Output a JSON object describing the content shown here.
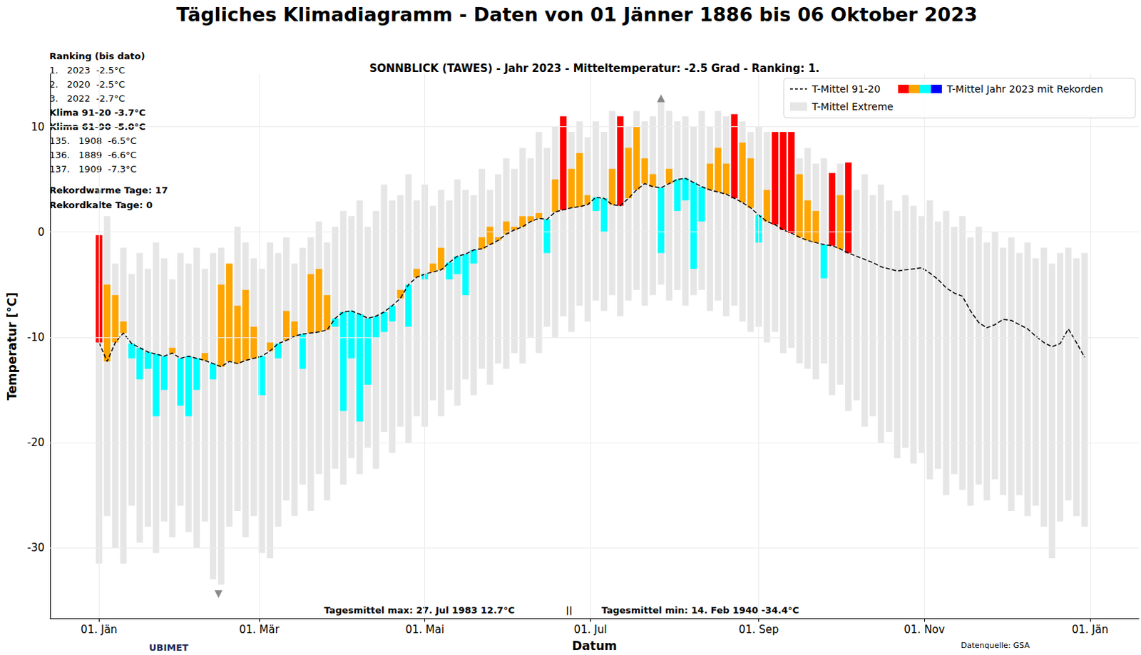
{
  "chart_data": {
    "type": "bar",
    "title": "Tägliches Klimadiagramm - Daten von 01 Jänner 1886 bis 06 Oktober 2023",
    "subtitle": "SONNBLICK (TAWES) - Jahr 2023 - Mitteltemperatur: -2.5 Grad - Ranking: 1.",
    "x_label": "Datum",
    "y_label": "Temperatur [°C]",
    "grid": true,
    "legend": "upper right",
    "xlim": [
      -18,
      383
    ],
    "xticks": [
      {
        "value": 0,
        "label": "01. Jän"
      },
      {
        "value": 59,
        "label": "01. Mär"
      },
      {
        "value": 120,
        "label": "01. Mai"
      },
      {
        "value": 181,
        "label": "01. Jul"
      },
      {
        "value": 243,
        "label": "01. Sep"
      },
      {
        "value": 304,
        "label": "01. Nov"
      },
      {
        "value": 365,
        "label": "01. Jän"
      }
    ],
    "ylim": [
      -36.7,
      15
    ],
    "yticks": [
      -30,
      -20,
      -10,
      0,
      10
    ],
    "x": [
      0,
      3,
      6,
      9,
      12,
      15,
      18,
      21,
      24,
      27,
      30,
      33,
      36,
      39,
      42,
      45,
      48,
      51,
      54,
      57,
      60,
      63,
      66,
      69,
      72,
      75,
      78,
      81,
      84,
      87,
      90,
      93,
      96,
      99,
      102,
      105,
      108,
      111,
      114,
      117,
      120,
      123,
      126,
      129,
      132,
      135,
      138,
      141,
      144,
      147,
      150,
      153,
      156,
      159,
      162,
      165,
      168,
      171,
      174,
      177,
      180,
      183,
      186,
      189,
      192,
      195,
      198,
      201,
      204,
      207,
      210,
      213,
      216,
      219,
      222,
      225,
      228,
      231,
      234,
      237,
      240,
      243,
      246,
      249,
      252,
      255,
      258,
      261,
      264,
      267,
      270,
      273,
      276,
      279,
      282,
      285,
      288,
      291,
      294,
      297,
      300,
      303,
      306,
      309,
      312,
      315,
      318,
      321,
      324,
      327,
      330,
      333,
      336,
      339,
      342,
      345,
      348,
      351,
      354,
      357,
      360,
      363
    ],
    "series": [
      {
        "name": "T-Mittel 91-20",
        "type": "line",
        "color": "#000000",
        "line_style": "dashed",
        "values": [
          -10.5,
          -12.3,
          -10.5,
          -9.6,
          -10.6,
          -11.0,
          -11.4,
          -11.6,
          -11.8,
          -11.5,
          -12.0,
          -11.8,
          -12.0,
          -12.2,
          -12.5,
          -12.8,
          -12.3,
          -12.5,
          -12.2,
          -12.0,
          -11.8,
          -11.3,
          -10.6,
          -10.3,
          -9.9,
          -9.7,
          -9.6,
          -9.5,
          -9.3,
          -8.2,
          -7.6,
          -7.5,
          -7.8,
          -8.2,
          -8.0,
          -7.6,
          -7.0,
          -6.3,
          -5.0,
          -4.3,
          -4.0,
          -3.8,
          -3.6,
          -2.9,
          -2.3,
          -2.1,
          -1.7,
          -1.6,
          -1.2,
          -0.8,
          -0.2,
          0.2,
          0.5,
          1.0,
          1.3,
          1.2,
          1.9,
          2.1,
          2.3,
          2.4,
          2.6,
          3.3,
          3.2,
          2.6,
          2.5,
          3.2,
          4.0,
          4.6,
          4.3,
          4.2,
          4.6,
          5.0,
          5.1,
          4.7,
          4.3,
          4.0,
          3.8,
          3.6,
          3.2,
          2.8,
          2.3,
          1.6,
          1.0,
          0.7,
          0.2,
          -0.1,
          -0.5,
          -0.8,
          -1.0,
          -1.2,
          -1.3,
          -1.6,
          -2.0,
          -2.3,
          -2.6,
          -2.9,
          -3.3,
          -3.5,
          -3.7,
          -3.6,
          -3.5,
          -3.4,
          -3.9,
          -4.5,
          -5.3,
          -5.8,
          -6.1,
          -7.5,
          -8.6,
          -9.1,
          -8.8,
          -8.3,
          -8.4,
          -8.8,
          -9.2,
          -9.9,
          -10.5,
          -10.9,
          -10.6,
          -9.2,
          -10.5,
          -11.9
        ]
      },
      {
        "name": "T-Mittel Jahr 2023 mit Rekorden",
        "type": "bar",
        "color": [
          "#ff0000",
          "#ffa500",
          "#00ffff",
          "#0000ff"
        ],
        "values": [
          -0.3,
          -5.0,
          -6.0,
          -8.5,
          -12.0,
          -14.0,
          -13.0,
          -17.5,
          -15.0,
          -11.0,
          -16.5,
          -17.5,
          -15.0,
          -11.5,
          -14.0,
          -5.0,
          -3.0,
          -7.0,
          -5.5,
          -9.0,
          -15.5,
          -10.5,
          -12.0,
          -7.5,
          -8.5,
          -13.0,
          -4.0,
          -3.5,
          -6.0,
          -9.0,
          -17.0,
          -12.0,
          -18.0,
          -14.5,
          -10.0,
          -9.5,
          -8.5,
          -5.5,
          -9.0,
          -3.5,
          -4.5,
          -3.0,
          -1.5,
          -4.5,
          -4.0,
          -6.0,
          -3.0,
          -0.5,
          0.5,
          -0.5,
          1.0,
          0.5,
          1.5,
          1.5,
          1.8,
          -2.0,
          5.0,
          11.0,
          6.0,
          7.5,
          3.5,
          2.0,
          0.0,
          6.0,
          11.0,
          8.0,
          10.0,
          7.0,
          5.5,
          -2.0,
          6.0,
          2.0,
          3.0,
          -3.5,
          1.0,
          6.5,
          8.0,
          6.5,
          11.2,
          8.5,
          7.0,
          -1.0,
          4.0,
          9.5,
          9.5,
          9.5,
          5.5,
          3.0,
          2.0,
          -4.4,
          5.6,
          3.5,
          6.6,
          null,
          null,
          null,
          null,
          null,
          null,
          null,
          null,
          null,
          null,
          null,
          null,
          null,
          null,
          null,
          null,
          null,
          null,
          null,
          null,
          null,
          null,
          null,
          null,
          null,
          null,
          null,
          null,
          null
        ],
        "colors": [
          "#ff0000",
          "#ffa500",
          "#ffa500",
          "#ffa500",
          "#00ffff",
          "#00ffff",
          "#00ffff",
          "#00ffff",
          "#00ffff",
          "#ffa500",
          "#00ffff",
          "#00ffff",
          "#00ffff",
          "#ffa500",
          "#00ffff",
          "#ffa500",
          "#ffa500",
          "#ffa500",
          "#ffa500",
          "#ffa500",
          "#00ffff",
          "#ffa500",
          "#00ffff",
          "#ffa500",
          "#ffa500",
          "#00ffff",
          "#ffa500",
          "#ffa500",
          "#ffa500",
          "#00ffff",
          "#00ffff",
          "#00ffff",
          "#00ffff",
          "#00ffff",
          "#00ffff",
          "#00ffff",
          "#00ffff",
          "#ffa500",
          "#00ffff",
          "#ffa500",
          "#00ffff",
          "#ffa500",
          "#ffa500",
          "#00ffff",
          "#00ffff",
          "#00ffff",
          "#00ffff",
          "#ffa500",
          "#ffa500",
          "#ffa500",
          "#ffa500",
          "#ffa500",
          "#ffa500",
          "#ffa500",
          "#ffa500",
          "#00ffff",
          "#ffa500",
          "#ff0000",
          "#ffa500",
          "#ffa500",
          "#ffa500",
          "#00ffff",
          "#00ffff",
          "#ffa500",
          "#ff0000",
          "#ffa500",
          "#ffa500",
          "#ffa500",
          "#ffa500",
          "#00ffff",
          "#ffa500",
          "#00ffff",
          "#00ffff",
          "#00ffff",
          "#00ffff",
          "#ffa500",
          "#ffa500",
          "#ffa500",
          "#ff0000",
          "#ffa500",
          "#ffa500",
          "#00ffff",
          "#ffa500",
          "#ff0000",
          "#ff0000",
          "#ff0000",
          "#ffa500",
          "#ffa500",
          "#ffa500",
          "#00ffff",
          "#ff0000",
          "#ffa500",
          "#ff0000",
          null,
          null,
          null,
          null,
          null,
          null,
          null,
          null,
          null,
          null,
          null,
          null,
          null,
          null,
          null,
          null,
          null,
          null,
          null,
          null,
          null,
          null,
          null,
          null,
          null,
          null,
          null,
          null,
          null
        ]
      },
      {
        "name": "T-Mittel Extreme",
        "type": "range",
        "color": "#e6e6e6",
        "low": [
          -31.5,
          -27.0,
          -30.0,
          -31.5,
          -26.0,
          -29.5,
          -28.0,
          -30.5,
          -27.5,
          -29.0,
          -26.0,
          -28.5,
          -30.0,
          -27.5,
          -33.0,
          -33.5,
          -28.0,
          -26.5,
          -29.0,
          -27.0,
          -30.5,
          -31.0,
          -28.0,
          -25.5,
          -27.0,
          -24.0,
          -26.5,
          -23.0,
          -25.5,
          -22.5,
          -24.0,
          -21.5,
          -23.0,
          -20.5,
          -22.5,
          -19.0,
          -21.0,
          -18.5,
          -20.0,
          -17.5,
          -18.5,
          -16.0,
          -17.5,
          -15.0,
          -16.5,
          -14.0,
          -15.5,
          -13.0,
          -14.5,
          -12.5,
          -13.0,
          -11.5,
          -12.5,
          -10.0,
          -11.5,
          -9.0,
          -10.0,
          -8.0,
          -9.5,
          -7.0,
          -8.5,
          -6.5,
          -7.5,
          -6.0,
          -8.0,
          -6.5,
          -5.5,
          -7.0,
          -6.0,
          -5.0,
          -6.5,
          -5.5,
          -7.0,
          -6.0,
          -5.5,
          -7.5,
          -6.5,
          -8.0,
          -7.0,
          -8.5,
          -9.5,
          -9.0,
          -10.5,
          -9.5,
          -11.5,
          -11.0,
          -12.5,
          -13.0,
          -14.0,
          -12.5,
          -15.5,
          -14.5,
          -17.0,
          -16.0,
          -18.5,
          -17.5,
          -20.0,
          -19.0,
          -21.5,
          -20.5,
          -22.0,
          -21.0,
          -23.5,
          -22.5,
          -25.0,
          -23.0,
          -24.5,
          -26.0,
          -24.0,
          -25.5,
          -23.5,
          -25.0,
          -26.5,
          -25.0,
          -27.0,
          -26.0,
          -28.0,
          -31.0,
          -27.5,
          -25.5,
          -27.0,
          -28.0
        ],
        "high": [
          -0.3,
          1.5,
          -3.0,
          -1.5,
          -4.0,
          -2.0,
          -3.5,
          -1.0,
          -2.5,
          -4.5,
          -2.0,
          -3.0,
          -1.5,
          -3.5,
          -2.0,
          -1.5,
          -3.0,
          0.5,
          -1.0,
          -2.5,
          -3.5,
          -1.0,
          -2.0,
          -0.5,
          -3.0,
          -1.5,
          -0.5,
          1.0,
          -1.0,
          0.5,
          2.0,
          1.5,
          3.0,
          0.5,
          2.0,
          4.5,
          3.0,
          3.5,
          5.5,
          3.0,
          4.5,
          2.5,
          4.0,
          3.0,
          5.0,
          4.0,
          3.5,
          6.0,
          4.0,
          5.5,
          7.0,
          6.0,
          8.0,
          7.0,
          9.5,
          8.0,
          10.0,
          11.0,
          9.5,
          10.5,
          9.0,
          10.5,
          9.5,
          11.5,
          11.0,
          10.0,
          11.5,
          10.5,
          11.0,
          12.7,
          11.5,
          10.5,
          11.0,
          10.0,
          11.5,
          10.0,
          11.5,
          11.0,
          11.2,
          10.5,
          9.5,
          10.0,
          9.5,
          9.5,
          9.5,
          9.5,
          7.0,
          8.0,
          6.5,
          7.0,
          5.6,
          6.5,
          6.6,
          4.0,
          5.5,
          3.5,
          4.5,
          3.0,
          2.0,
          3.5,
          2.5,
          1.5,
          3.0,
          1.0,
          2.0,
          0.5,
          1.5,
          -0.5,
          0.5,
          -1.0,
          0.0,
          -1.5,
          -0.5,
          -2.0,
          -1.0,
          -2.5,
          -1.5,
          -3.0,
          -2.0,
          -1.5,
          -2.5,
          -2.0
        ]
      }
    ],
    "record_marks": [
      {
        "x": 207,
        "y": 12.7,
        "marker": "triangle-up"
      },
      {
        "x": 44,
        "y": -34.4,
        "marker": "triangle-down"
      }
    ],
    "footer_texts": [
      "Tagesmittel max: 27. Jul 1983 12.7°C",
      "||",
      "Tagesmittel min: 14. Feb 1940 -34.4°C"
    ],
    "info_lines": [
      {
        "text": "Ranking (bis dato)",
        "bold": true
      },
      {
        "text": "1.   2023  -2.5°C",
        "bold": false
      },
      {
        "text": "2.   2020  -2.5°C",
        "bold": false
      },
      {
        "text": "3.   2022  -2.7°C",
        "bold": false
      },
      {
        "text": "Klima 91-20 -3.7°C",
        "bold": true
      },
      {
        "text": "Klima 61-90 -5.0°C",
        "bold": true
      },
      {
        "text": "135.   1908  -6.5°C",
        "bold": false
      },
      {
        "text": "136.   1889  -6.6°C",
        "bold": false
      },
      {
        "text": "137.   1909  -7.3°C",
        "bold": false
      }
    ],
    "summary_lines": [
      "Rekordwarme Tage: 17",
      "Rekordkalte Tage: 0"
    ],
    "logo": "UBIMET",
    "source": "Datenquelle: GSA"
  }
}
